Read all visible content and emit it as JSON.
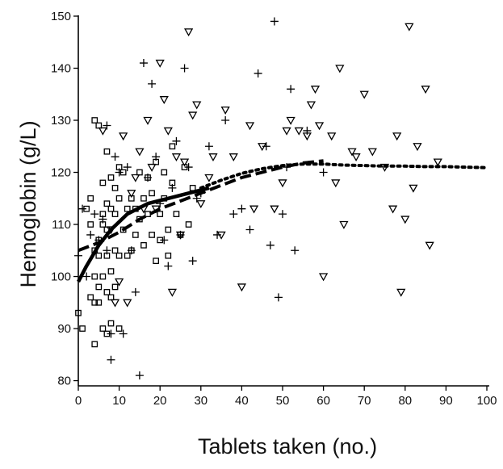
{
  "chart_data": {
    "type": "scatter",
    "title": "",
    "xlabel": "Tablets taken (no.)",
    "ylabel": "Hemoglobin (g/L)",
    "xlim": [
      0,
      100
    ],
    "ylim": [
      79,
      150
    ],
    "xticks": [
      0,
      10,
      20,
      30,
      40,
      50,
      60,
      70,
      80,
      90,
      100
    ],
    "yticks": [
      80,
      90,
      100,
      110,
      120,
      130,
      140,
      150
    ],
    "grid": false,
    "legend": "none",
    "series": [
      {
        "marker": "square",
        "points": [
          [
            0,
            93
          ],
          [
            1,
            90
          ],
          [
            2,
            113
          ],
          [
            3,
            110
          ],
          [
            3,
            115
          ],
          [
            3,
            96
          ],
          [
            4,
            130
          ],
          [
            4,
            105
          ],
          [
            4,
            100
          ],
          [
            4,
            95
          ],
          [
            4,
            87
          ],
          [
            5,
            107
          ],
          [
            5,
            104
          ],
          [
            5,
            98
          ],
          [
            5,
            95
          ],
          [
            5,
            129
          ],
          [
            6,
            118
          ],
          [
            6,
            112
          ],
          [
            6,
            110
          ],
          [
            6,
            100
          ],
          [
            6,
            90
          ],
          [
            7,
            124
          ],
          [
            7,
            114
          ],
          [
            7,
            109
          ],
          [
            7,
            104
          ],
          [
            7,
            97
          ],
          [
            7,
            89
          ],
          [
            8,
            113
          ],
          [
            8,
            101
          ],
          [
            8,
            96
          ],
          [
            8,
            91
          ],
          [
            8,
            119
          ],
          [
            9,
            117
          ],
          [
            9,
            105
          ],
          [
            9,
            98
          ],
          [
            9,
            112
          ],
          [
            10,
            121
          ],
          [
            10,
            115
          ],
          [
            10,
            104
          ],
          [
            10,
            90
          ],
          [
            11,
            120
          ],
          [
            11,
            109
          ],
          [
            12,
            113
          ],
          [
            12,
            104
          ],
          [
            13,
            115
          ],
          [
            13,
            105
          ],
          [
            14,
            113
          ],
          [
            14,
            108
          ],
          [
            15,
            120
          ],
          [
            15,
            111
          ],
          [
            16,
            115
          ],
          [
            16,
            106
          ],
          [
            17,
            119
          ],
          [
            17,
            112
          ],
          [
            18,
            116
          ],
          [
            18,
            108
          ],
          [
            19,
            122
          ],
          [
            19,
            103
          ],
          [
            20,
            112
          ],
          [
            20,
            107
          ],
          [
            21,
            120
          ],
          [
            21,
            115
          ],
          [
            22,
            109
          ],
          [
            22,
            104
          ],
          [
            23,
            125
          ],
          [
            23,
            118
          ],
          [
            24,
            112
          ],
          [
            25,
            108
          ],
          [
            26,
            121
          ],
          [
            27,
            110
          ],
          [
            28,
            117
          ]
        ]
      },
      {
        "marker": "plus",
        "points": [
          [
            0,
            104
          ],
          [
            1,
            113
          ],
          [
            2,
            100
          ],
          [
            3,
            108
          ],
          [
            4,
            112
          ],
          [
            5,
            107
          ],
          [
            6,
            111
          ],
          [
            7,
            129
          ],
          [
            7,
            105
          ],
          [
            8,
            84
          ],
          [
            8,
            89
          ],
          [
            9,
            123
          ],
          [
            10,
            120
          ],
          [
            11,
            89
          ],
          [
            12,
            121
          ],
          [
            13,
            105
          ],
          [
            14,
            97
          ],
          [
            15,
            81
          ],
          [
            16,
            141
          ],
          [
            17,
            119
          ],
          [
            18,
            137
          ],
          [
            19,
            123
          ],
          [
            20,
            114
          ],
          [
            21,
            107
          ],
          [
            22,
            102
          ],
          [
            23,
            117
          ],
          [
            24,
            126
          ],
          [
            25,
            108
          ],
          [
            26,
            140
          ],
          [
            27,
            121
          ],
          [
            28,
            103
          ],
          [
            29,
            115
          ],
          [
            30,
            116
          ],
          [
            32,
            125
          ],
          [
            34,
            108
          ],
          [
            36,
            130
          ],
          [
            38,
            112
          ],
          [
            40,
            113
          ],
          [
            42,
            109
          ],
          [
            44,
            139
          ],
          [
            46,
            125
          ],
          [
            47,
            106
          ],
          [
            48,
            149
          ],
          [
            49,
            96
          ],
          [
            50,
            112
          ],
          [
            51,
            121
          ],
          [
            52,
            136
          ],
          [
            53,
            105
          ],
          [
            56,
            128
          ],
          [
            60,
            120
          ]
        ]
      },
      {
        "marker": "triangle-down",
        "points": [
          [
            6,
            128
          ],
          [
            8,
            109
          ],
          [
            9,
            95
          ],
          [
            10,
            99
          ],
          [
            11,
            127
          ],
          [
            12,
            95
          ],
          [
            13,
            116
          ],
          [
            14,
            119
          ],
          [
            15,
            124
          ],
          [
            16,
            113
          ],
          [
            17,
            130
          ],
          [
            18,
            121
          ],
          [
            19,
            113
          ],
          [
            20,
            141
          ],
          [
            21,
            134
          ],
          [
            22,
            128
          ],
          [
            23,
            97
          ],
          [
            24,
            123
          ],
          [
            25,
            108
          ],
          [
            26,
            122
          ],
          [
            27,
            147
          ],
          [
            28,
            131
          ],
          [
            29,
            133
          ],
          [
            30,
            114
          ],
          [
            32,
            119
          ],
          [
            33,
            123
          ],
          [
            35,
            108
          ],
          [
            36,
            132
          ],
          [
            38,
            123
          ],
          [
            40,
            98
          ],
          [
            42,
            129
          ],
          [
            43,
            113
          ],
          [
            45,
            125
          ],
          [
            48,
            113
          ],
          [
            50,
            118
          ],
          [
            51,
            128
          ],
          [
            52,
            130
          ],
          [
            54,
            128
          ],
          [
            56,
            127
          ],
          [
            57,
            133
          ],
          [
            58,
            136
          ],
          [
            59,
            129
          ],
          [
            60,
            100
          ],
          [
            62,
            127
          ],
          [
            63,
            118
          ],
          [
            64,
            140
          ],
          [
            65,
            110
          ],
          [
            67,
            124
          ],
          [
            68,
            123
          ],
          [
            70,
            135
          ],
          [
            72,
            124
          ],
          [
            75,
            121
          ],
          [
            77,
            113
          ],
          [
            78,
            127
          ],
          [
            79,
            97
          ],
          [
            80,
            111
          ],
          [
            81,
            148
          ],
          [
            82,
            117
          ],
          [
            83,
            125
          ],
          [
            85,
            136
          ],
          [
            86,
            106
          ],
          [
            88,
            122
          ]
        ]
      }
    ],
    "curves": [
      {
        "style": "solid",
        "x": [
          0,
          2,
          5,
          8,
          12,
          17,
          22,
          27,
          32
        ],
        "y": [
          99,
          102,
          106,
          109,
          112,
          114,
          115,
          116,
          117
        ]
      },
      {
        "style": "dashed",
        "x": [
          0,
          5,
          10,
          15,
          20,
          25,
          30,
          35,
          40,
          45,
          50,
          55,
          60
        ],
        "y": [
          105,
          106.5,
          108.5,
          111,
          113,
          114.5,
          116,
          117.5,
          119,
          120,
          121,
          121.8,
          122.2
        ]
      },
      {
        "style": "dotted",
        "x": [
          30,
          35,
          40,
          45,
          50,
          55,
          60,
          65,
          70,
          75,
          80,
          85,
          90,
          95,
          100
        ],
        "y": [
          117,
          118.5,
          119.8,
          120.7,
          121.3,
          121.6,
          121.6,
          121.4,
          121.3,
          121.2,
          121.2,
          121.1,
          121.1,
          121,
          120.9
        ]
      }
    ]
  }
}
